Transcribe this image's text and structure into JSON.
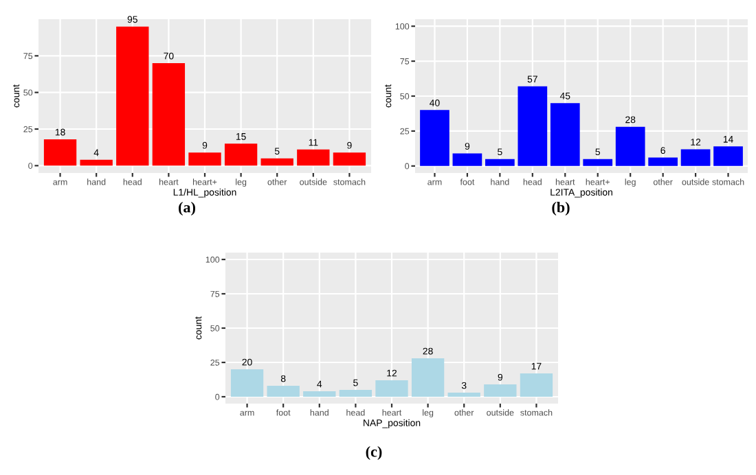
{
  "chart_data": [
    {
      "type": "bar",
      "categories": [
        "arm",
        "hand",
        "head",
        "heart",
        "heart+",
        "leg",
        "other",
        "outside",
        "stomach"
      ],
      "values": [
        18,
        4,
        95,
        70,
        9,
        15,
        5,
        11,
        9
      ],
      "color": "#ff0000",
      "xlabel": "L1/HL_position",
      "ylabel": "count",
      "ylim": [
        -5,
        100
      ],
      "yticks": [
        0,
        25,
        50,
        75
      ],
      "grid": true,
      "data_labels": true,
      "annotations": [
        "(a)"
      ]
    },
    {
      "type": "bar",
      "categories": [
        "arm",
        "foot",
        "hand",
        "head",
        "heart",
        "heart+",
        "leg",
        "other",
        "outside",
        "stomach"
      ],
      "values": [
        40,
        9,
        5,
        57,
        45,
        5,
        28,
        6,
        12,
        14
      ],
      "color": "#0000ff",
      "xlabel": "L2ITA_position",
      "ylabel": "count",
      "ylim": [
        -5,
        105
      ],
      "yticks": [
        0,
        25,
        50,
        75,
        100
      ],
      "grid": true,
      "data_labels": true,
      "annotations": [
        "(b)"
      ]
    },
    {
      "type": "bar",
      "categories": [
        "arm",
        "foot",
        "hand",
        "head",
        "heart",
        "leg",
        "other",
        "outside",
        "stomach"
      ],
      "values": [
        20,
        8,
        4,
        5,
        12,
        28,
        3,
        9,
        17
      ],
      "color": "#add8e6",
      "xlabel": "NAP_position",
      "ylabel": "count",
      "ylim": [
        -5,
        105
      ],
      "yticks": [
        0,
        25,
        50,
        75,
        100
      ],
      "grid": true,
      "data_labels": true,
      "annotations": [
        "(c)"
      ]
    }
  ]
}
